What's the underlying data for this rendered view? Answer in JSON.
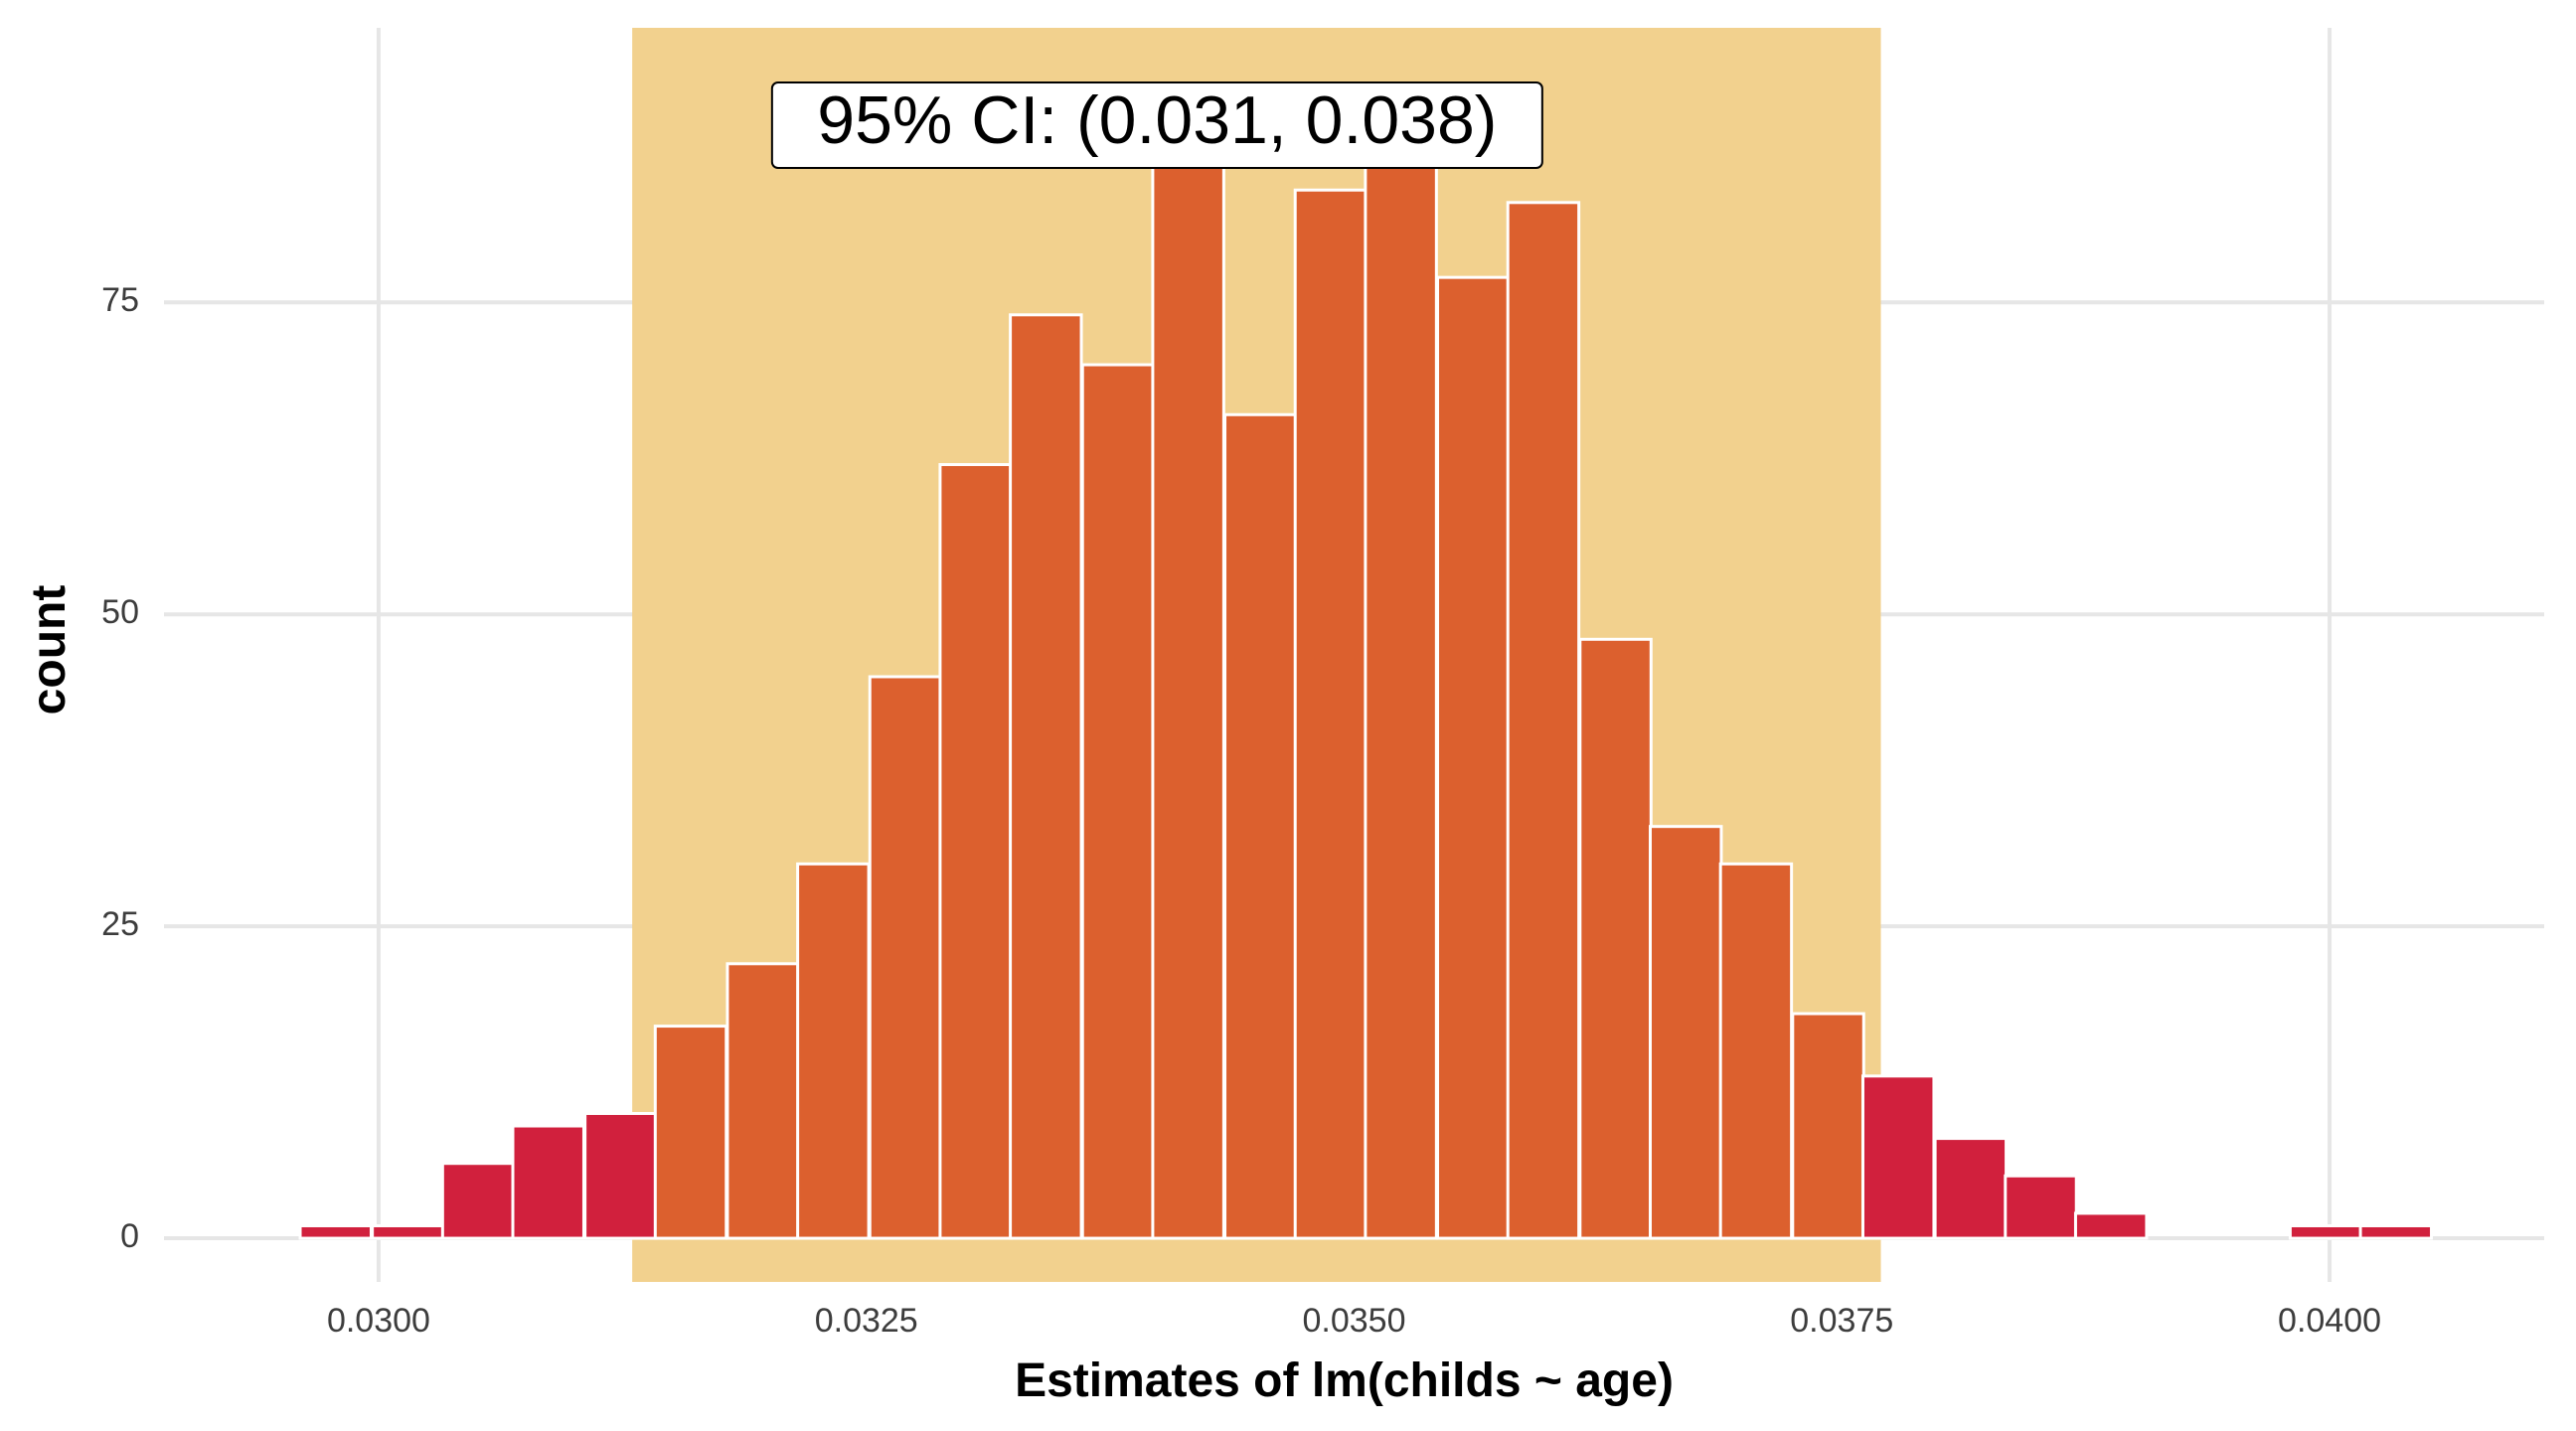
{
  "chart_data": {
    "type": "bar",
    "subtype": "histogram",
    "xlabel": "Estimates of lm(childs ~ age)",
    "ylabel": "count",
    "xlim": [
      0.0289,
      0.0411
    ],
    "ylim": [
      -3.5,
      97
    ],
    "x_ticks": [
      0.03,
      0.0325,
      0.035,
      0.0375,
      0.04
    ],
    "x_tick_labels": [
      "0.0300",
      "0.0325",
      "0.0350",
      "0.0375",
      "0.0400"
    ],
    "y_ticks": [
      0,
      25,
      50,
      75
    ],
    "y_tick_labels": [
      "0",
      "25",
      "50",
      "75"
    ],
    "grid": true,
    "bin_width": 0.000364,
    "bins": [
      {
        "x": 0.02978,
        "count": 1,
        "in_ci": false
      },
      {
        "x": 0.03015,
        "count": 1,
        "in_ci": false
      },
      {
        "x": 0.03051,
        "count": 6,
        "in_ci": false
      },
      {
        "x": 0.03087,
        "count": 9,
        "in_ci": false
      },
      {
        "x": 0.03124,
        "count": 10,
        "in_ci": false
      },
      {
        "x": 0.0316,
        "count": 17,
        "in_ci": true
      },
      {
        "x": 0.03197,
        "count": 22,
        "in_ci": true
      },
      {
        "x": 0.03233,
        "count": 30,
        "in_ci": true
      },
      {
        "x": 0.0327,
        "count": 45,
        "in_ci": true
      },
      {
        "x": 0.03306,
        "count": 62,
        "in_ci": true
      },
      {
        "x": 0.03342,
        "count": 74,
        "in_ci": true
      },
      {
        "x": 0.03379,
        "count": 70,
        "in_ci": true
      },
      {
        "x": 0.03415,
        "count": 90,
        "in_ci": true
      },
      {
        "x": 0.03452,
        "count": 66,
        "in_ci": true
      },
      {
        "x": 0.03488,
        "count": 84,
        "in_ci": true
      },
      {
        "x": 0.03524,
        "count": 89,
        "in_ci": true
      },
      {
        "x": 0.03561,
        "count": 77,
        "in_ci": true
      },
      {
        "x": 0.03597,
        "count": 83,
        "in_ci": true
      },
      {
        "x": 0.03634,
        "count": 48,
        "in_ci": true
      },
      {
        "x": 0.0367,
        "count": 33,
        "in_ci": true
      },
      {
        "x": 0.03706,
        "count": 30,
        "in_ci": true
      },
      {
        "x": 0.03743,
        "count": 18,
        "in_ci": true
      },
      {
        "x": 0.03779,
        "count": 13,
        "in_ci": false
      },
      {
        "x": 0.03816,
        "count": 8,
        "in_ci": false
      },
      {
        "x": 0.03852,
        "count": 5,
        "in_ci": false
      },
      {
        "x": 0.03888,
        "count": 2,
        "in_ci": false
      },
      {
        "x": 0.03925,
        "count": 0,
        "in_ci": false
      },
      {
        "x": 0.03961,
        "count": 0,
        "in_ci": false
      },
      {
        "x": 0.03998,
        "count": 1,
        "in_ci": false
      },
      {
        "x": 0.04034,
        "count": 1,
        "in_ci": false
      }
    ],
    "confidence_interval": {
      "lower": 0.0313,
      "upper": 0.0377,
      "label": "95% CI: (0.031, 0.038)"
    },
    "colors": {
      "bar_in_ci": "#dc602e",
      "bar_outside_ci": "#d1203d",
      "bar_outline": "#ffffff",
      "ci_band": "#f2d18e",
      "grid": "#e6e6e6"
    }
  }
}
